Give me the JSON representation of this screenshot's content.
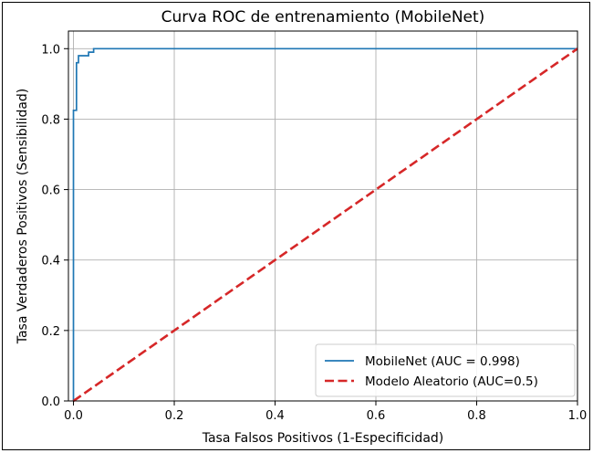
{
  "chart_data": {
    "type": "line",
    "title": "Curva ROC de entrenamiento (MobileNet)",
    "xlabel": "Tasa Falsos Positivos (1-Especificidad)",
    "ylabel": "Tasa Verdaderos Positivos (Sensibilidad)",
    "xlim": [
      -0.01,
      1.0
    ],
    "ylim": [
      0.0,
      1.05
    ],
    "xticks": [
      "0.0",
      "0.2",
      "0.4",
      "0.6",
      "0.8",
      "1.0"
    ],
    "yticks": [
      "0.0",
      "0.2",
      "0.4",
      "0.6",
      "0.8",
      "1.0"
    ],
    "grid": true,
    "legend_position": "bottom-right",
    "series": [
      {
        "name": "MobileNet (AUC = 0.998)",
        "color": "#1f77b4",
        "style": "solid",
        "x": [
          0.0,
          0.0,
          0.0,
          0.0,
          0.0,
          0.0,
          0.0,
          0.006,
          0.006,
          0.006,
          0.006,
          0.01,
          0.01,
          0.01,
          0.02,
          0.02,
          0.02,
          0.03,
          0.03,
          0.03,
          0.04,
          0.04,
          1.0
        ],
        "y": [
          0.0,
          0.08,
          0.82,
          0.82,
          0.82,
          0.82,
          0.825,
          0.825,
          0.96,
          0.96,
          0.96,
          0.96,
          0.98,
          0.98,
          0.98,
          0.98,
          0.98,
          0.98,
          0.99,
          0.99,
          0.99,
          1.0,
          1.0
        ]
      },
      {
        "name": "Modelo Aleatorio (AUC=0.5)",
        "color": "#d62728",
        "style": "dashed",
        "x": [
          0.0,
          1.0
        ],
        "y": [
          0.0,
          1.0
        ]
      }
    ]
  }
}
